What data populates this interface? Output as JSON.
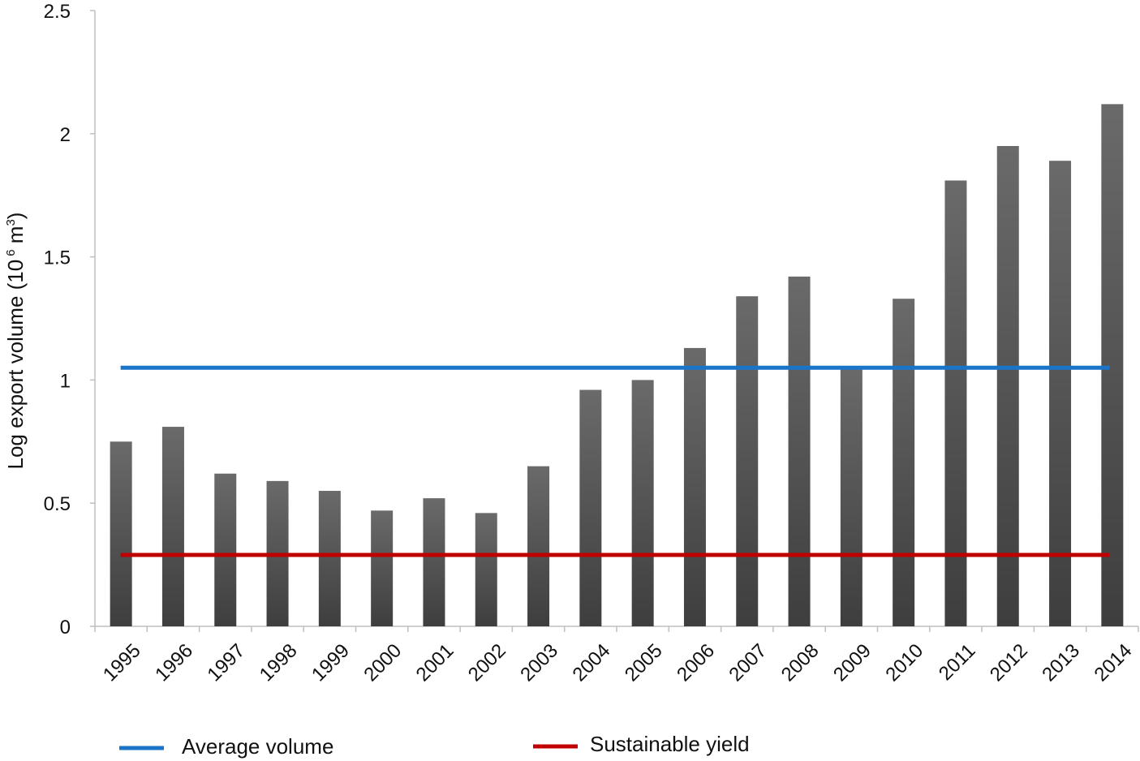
{
  "chart_data": {
    "type": "bar",
    "categories": [
      "1995",
      "1996",
      "1997",
      "1998",
      "1999",
      "2000",
      "2001",
      "2002",
      "2003",
      "2004",
      "2005",
      "2006",
      "2007",
      "2008",
      "2009",
      "2010",
      "2011",
      "2012",
      "2013",
      "2014"
    ],
    "values": [
      0.75,
      0.81,
      0.62,
      0.59,
      0.55,
      0.47,
      0.52,
      0.46,
      0.65,
      0.96,
      1.0,
      1.13,
      1.34,
      1.42,
      1.05,
      1.33,
      1.81,
      1.95,
      1.89,
      2.12
    ],
    "title": "",
    "xlabel": "",
    "ylabel": {
      "prefix": "Log export volume (10",
      "exp": "6",
      "unit": " m",
      "unit_sup": "3",
      "suffix": ")"
    },
    "ylim": [
      0,
      2.5
    ],
    "yticks": [
      "0",
      "0.5",
      "1",
      "1.5",
      "2",
      "2.5"
    ],
    "ytick_values": [
      0,
      0.5,
      1,
      1.5,
      2,
      2.5
    ],
    "grid": false,
    "bar_color": "#505050",
    "reference_lines": [
      {
        "name": "Average volume",
        "value": 1.05,
        "color": "#1a75c8"
      },
      {
        "name": "Sustainable yield",
        "value": 0.29,
        "color": "#c00000"
      }
    ],
    "legend": {
      "placement": "bottom",
      "entries": [
        {
          "label": "Average volume",
          "color": "#1a75c8"
        },
        {
          "label": "Sustainable yield",
          "color": "#c00000"
        }
      ]
    }
  }
}
